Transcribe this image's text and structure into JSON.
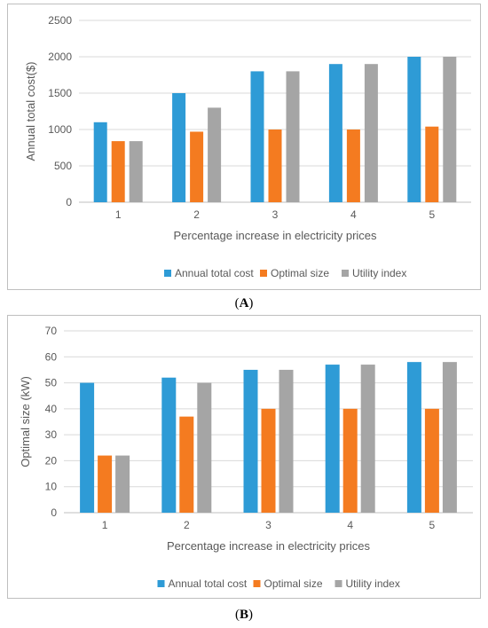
{
  "chart_data": [
    {
      "id": "A",
      "type": "bar",
      "caption": "A",
      "categories": [
        "1",
        "2",
        "3",
        "4",
        "5"
      ],
      "xlabel": "Percentage increase in electricity prices",
      "ylabel": "Annual total cost($)",
      "ylim": [
        0,
        2500
      ],
      "yticks": [
        0,
        500,
        1000,
        1500,
        2000,
        2500
      ],
      "grid": true,
      "legend": "bottom",
      "series": [
        {
          "name": "Annual total cost",
          "color": "#2E9BD6",
          "values": [
            1100,
            1500,
            1800,
            1900,
            2000
          ]
        },
        {
          "name": "Optimal size",
          "color": "#F47B20",
          "values": [
            840,
            970,
            1000,
            1000,
            1040
          ]
        },
        {
          "name": "Utility index",
          "color": "#A5A5A5",
          "values": [
            840,
            1300,
            1800,
            1900,
            2000
          ]
        }
      ]
    },
    {
      "id": "B",
      "type": "bar",
      "caption": "B",
      "categories": [
        "1",
        "2",
        "3",
        "4",
        "5"
      ],
      "xlabel": "Percentage increase in electricity prices",
      "ylabel": "Optimal size (kW)",
      "ylim": [
        0,
        70
      ],
      "yticks": [
        0,
        10,
        20,
        30,
        40,
        50,
        60,
        70
      ],
      "grid": true,
      "legend": "bottom",
      "series": [
        {
          "name": "Annual total cost",
          "color": "#2E9BD6",
          "values": [
            50,
            52,
            55,
            57,
            58
          ]
        },
        {
          "name": "Optimal size",
          "color": "#F47B20",
          "values": [
            22,
            37,
            40,
            40,
            40
          ]
        },
        {
          "name": "Utility index",
          "color": "#A5A5A5",
          "values": [
            22,
            50,
            55,
            57,
            58
          ]
        }
      ]
    }
  ]
}
